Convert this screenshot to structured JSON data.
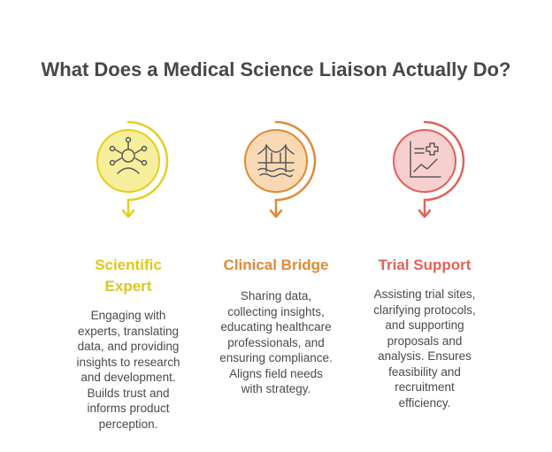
{
  "title": "What Does a Medical Science Liaison Actually Do?",
  "colors": {
    "yellow": "#e6cf1c",
    "yellow_fill": "#f6ee9a",
    "orange": "#e08a35",
    "orange_fill": "#f8d9b3",
    "red": "#e26158",
    "red_fill": "#f8cfcf",
    "title_text": "#474747",
    "body_text": "#4a4a4a"
  },
  "cards": [
    {
      "icon": "expert-person-icon",
      "heading_line1": "Scientific",
      "heading_line2": "Expert",
      "lines": [
        "Engaging with",
        "experts, translating",
        "data, and providing",
        "insights to research",
        "and development.",
        "Builds trust and",
        "informs product",
        "perception."
      ]
    },
    {
      "icon": "bridge-icon",
      "heading_line1": "Clinical Bridge",
      "lines": [
        "Sharing data,",
        "collecting insights,",
        "educating healthcare",
        "professionals, and",
        "ensuring compliance.",
        "Aligns field needs",
        "with strategy."
      ]
    },
    {
      "icon": "medical-chart-icon",
      "heading_line1": "Trial Support",
      "lines": [
        "Assisting trial sites,",
        "clarifying protocols,",
        "and supporting",
        "proposals and",
        "analysis. Ensures",
        "feasibility and",
        "recruitment",
        "efficiency."
      ]
    }
  ]
}
